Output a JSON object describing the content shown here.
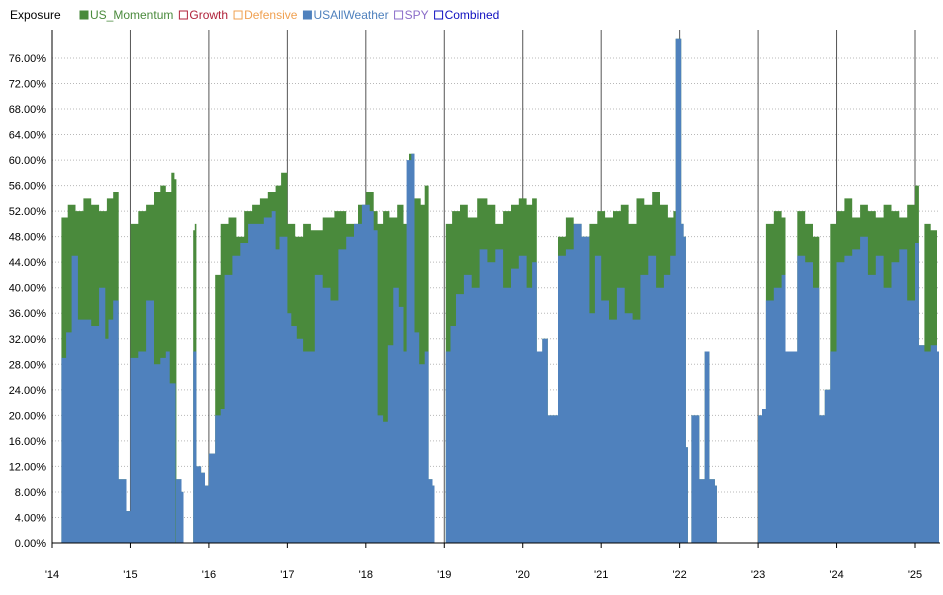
{
  "legend": {
    "title": "Exposure",
    "items": [
      {
        "name": "US_Momentum",
        "color": "#4a8a3c",
        "filled": true
      },
      {
        "name": "Growth",
        "color": "#b0223a",
        "filled": false
      },
      {
        "name": "Defensive",
        "color": "#f0a050",
        "filled": false
      },
      {
        "name": "USAllWeather",
        "color": "#4f81bd",
        "filled": true
      },
      {
        "name": "SPY",
        "color": "#8a6cc8",
        "filled": false
      },
      {
        "name": "Combined",
        "color": "#1010c0",
        "filled": false
      }
    ]
  },
  "chart_data": {
    "type": "area",
    "title": "",
    "xlabel": "",
    "ylabel": "",
    "stacked": true,
    "ylim": [
      0,
      80
    ],
    "xlim": [
      2014.0,
      2025.3
    ],
    "grid": "horizontal dotted",
    "legend_position": "top-left",
    "y_ticks": [
      "0.00%",
      "4.00%",
      "8.00%",
      "12.00%",
      "16.00%",
      "20.00%",
      "24.00%",
      "28.00%",
      "32.00%",
      "36.00%",
      "40.00%",
      "44.00%",
      "48.00%",
      "52.00%",
      "56.00%",
      "60.00%",
      "64.00%",
      "68.00%",
      "72.00%",
      "76.00%"
    ],
    "x_ticks": [
      {
        "label": "'14",
        "x": 2014.0
      },
      {
        "label": "'15",
        "x": 2015.0
      },
      {
        "label": "'16",
        "x": 2016.0
      },
      {
        "label": "'17",
        "x": 2017.0
      },
      {
        "label": "'18",
        "x": 2018.0
      },
      {
        "label": "'19",
        "x": 2019.0
      },
      {
        "label": "'20",
        "x": 2020.0
      },
      {
        "label": "'21",
        "x": 2021.0
      },
      {
        "label": "'22",
        "x": 2022.0
      },
      {
        "label": "'23",
        "x": 2023.0
      },
      {
        "label": "'24",
        "x": 2024.0
      },
      {
        "label": "'25",
        "x": 2025.0
      }
    ],
    "series": [
      {
        "name": "USAllWeather",
        "color": "#4f81bd",
        "points": [
          [
            2014.12,
            29
          ],
          [
            2014.18,
            33
          ],
          [
            2014.25,
            45
          ],
          [
            2014.33,
            35
          ],
          [
            2014.42,
            35
          ],
          [
            2014.5,
            34
          ],
          [
            2014.6,
            40
          ],
          [
            2014.68,
            32
          ],
          [
            2014.72,
            35
          ],
          [
            2014.78,
            38
          ],
          [
            2014.85,
            10
          ],
          [
            2014.92,
            10
          ],
          [
            2014.95,
            5
          ],
          [
            2015.0,
            29
          ],
          [
            2015.1,
            30
          ],
          [
            2015.2,
            38
          ],
          [
            2015.3,
            28
          ],
          [
            2015.38,
            29
          ],
          [
            2015.45,
            30
          ],
          [
            2015.5,
            25
          ],
          [
            2015.55,
            25
          ],
          [
            2015.58,
            null
          ],
          [
            2015.58,
            10
          ],
          [
            2015.65,
            8
          ],
          [
            2015.68,
            null
          ],
          [
            2015.8,
            30
          ],
          [
            2015.82,
            30
          ],
          [
            2015.84,
            12
          ],
          [
            2015.9,
            11
          ],
          [
            2015.95,
            9
          ],
          [
            2016.0,
            14
          ],
          [
            2016.08,
            20
          ],
          [
            2016.15,
            21
          ],
          [
            2016.2,
            42
          ],
          [
            2016.3,
            45
          ],
          [
            2016.4,
            47
          ],
          [
            2016.5,
            50
          ],
          [
            2016.6,
            50
          ],
          [
            2016.7,
            51
          ],
          [
            2016.8,
            52
          ],
          [
            2016.85,
            46
          ],
          [
            2016.9,
            48
          ],
          [
            2017.0,
            36
          ],
          [
            2017.05,
            34
          ],
          [
            2017.12,
            32
          ],
          [
            2017.2,
            30
          ],
          [
            2017.3,
            30
          ],
          [
            2017.35,
            42
          ],
          [
            2017.45,
            40
          ],
          [
            2017.55,
            38
          ],
          [
            2017.65,
            46
          ],
          [
            2017.75,
            48
          ],
          [
            2017.85,
            50
          ],
          [
            2017.95,
            53
          ],
          [
            2018.05,
            52
          ],
          [
            2018.1,
            49
          ],
          [
            2018.15,
            20
          ],
          [
            2018.22,
            19
          ],
          [
            2018.28,
            31
          ],
          [
            2018.35,
            40
          ],
          [
            2018.42,
            37
          ],
          [
            2018.48,
            30
          ],
          [
            2018.52,
            60
          ],
          [
            2018.58,
            61
          ],
          [
            2018.62,
            33
          ],
          [
            2018.68,
            28
          ],
          [
            2018.75,
            30
          ],
          [
            2018.8,
            10
          ],
          [
            2018.85,
            9
          ],
          [
            2018.87,
            null
          ],
          [
            2019.02,
            30
          ],
          [
            2019.08,
            34
          ],
          [
            2019.15,
            39
          ],
          [
            2019.25,
            42
          ],
          [
            2019.35,
            40
          ],
          [
            2019.45,
            46
          ],
          [
            2019.55,
            44
          ],
          [
            2019.65,
            46
          ],
          [
            2019.75,
            40
          ],
          [
            2019.85,
            43
          ],
          [
            2019.95,
            45
          ],
          [
            2020.05,
            40
          ],
          [
            2020.12,
            44
          ],
          [
            2020.18,
            30
          ],
          [
            2020.25,
            32
          ],
          [
            2020.32,
            20
          ],
          [
            2020.4,
            20
          ],
          [
            2020.45,
            45
          ],
          [
            2020.55,
            46
          ],
          [
            2020.65,
            50
          ],
          [
            2020.75,
            48
          ],
          [
            2020.85,
            36
          ],
          [
            2020.92,
            45
          ],
          [
            2021.0,
            38
          ],
          [
            2021.1,
            35
          ],
          [
            2021.2,
            40
          ],
          [
            2021.3,
            36
          ],
          [
            2021.4,
            35
          ],
          [
            2021.5,
            42
          ],
          [
            2021.6,
            45
          ],
          [
            2021.7,
            40
          ],
          [
            2021.8,
            42
          ],
          [
            2021.88,
            45
          ],
          [
            2021.95,
            79
          ],
          [
            2022.0,
            79
          ],
          [
            2022.02,
            50
          ],
          [
            2022.05,
            48
          ],
          [
            2022.08,
            15
          ],
          [
            2022.1,
            null
          ],
          [
            2022.15,
            20
          ],
          [
            2022.22,
            20
          ],
          [
            2022.25,
            10
          ],
          [
            2022.32,
            30
          ],
          [
            2022.38,
            10
          ],
          [
            2022.45,
            9
          ],
          [
            2022.48,
            null
          ],
          [
            2023.0,
            20
          ],
          [
            2023.05,
            21
          ],
          [
            2023.1,
            38
          ],
          [
            2023.2,
            40
          ],
          [
            2023.3,
            42
          ],
          [
            2023.35,
            30
          ],
          [
            2023.42,
            30
          ],
          [
            2023.5,
            45
          ],
          [
            2023.6,
            44
          ],
          [
            2023.7,
            40
          ],
          [
            2023.78,
            20
          ],
          [
            2023.85,
            24
          ],
          [
            2023.92,
            30
          ],
          [
            2024.0,
            44
          ],
          [
            2024.1,
            45
          ],
          [
            2024.2,
            46
          ],
          [
            2024.3,
            48
          ],
          [
            2024.4,
            42
          ],
          [
            2024.5,
            45
          ],
          [
            2024.6,
            40
          ],
          [
            2024.7,
            44
          ],
          [
            2024.8,
            46
          ],
          [
            2024.9,
            38
          ],
          [
            2025.0,
            47
          ],
          [
            2025.05,
            31
          ],
          [
            2025.12,
            30
          ],
          [
            2025.2,
            31
          ],
          [
            2025.28,
            30
          ]
        ]
      },
      {
        "name": "US_Momentum",
        "color": "#4a8a3c",
        "points": [
          [
            2014.12,
            51
          ],
          [
            2014.2,
            53
          ],
          [
            2014.3,
            52
          ],
          [
            2014.4,
            54
          ],
          [
            2014.5,
            53
          ],
          [
            2014.6,
            52
          ],
          [
            2014.7,
            54
          ],
          [
            2014.78,
            55
          ],
          [
            2014.85,
            10
          ],
          [
            2014.92,
            10
          ],
          [
            2014.95,
            5
          ],
          [
            2015.0,
            50
          ],
          [
            2015.1,
            52
          ],
          [
            2015.2,
            53
          ],
          [
            2015.3,
            55
          ],
          [
            2015.38,
            56
          ],
          [
            2015.45,
            55
          ],
          [
            2015.52,
            58
          ],
          [
            2015.56,
            57
          ],
          [
            2015.58,
            null
          ],
          [
            2015.58,
            10
          ],
          [
            2015.65,
            8
          ],
          [
            2015.68,
            null
          ],
          [
            2015.8,
            49
          ],
          [
            2015.82,
            50
          ],
          [
            2015.84,
            12
          ],
          [
            2015.9,
            11
          ],
          [
            2015.95,
            9
          ],
          [
            2016.0,
            14
          ],
          [
            2016.08,
            42
          ],
          [
            2016.15,
            50
          ],
          [
            2016.25,
            51
          ],
          [
            2016.35,
            48
          ],
          [
            2016.45,
            52
          ],
          [
            2016.55,
            53
          ],
          [
            2016.65,
            54
          ],
          [
            2016.75,
            55
          ],
          [
            2016.85,
            56
          ],
          [
            2016.92,
            58
          ],
          [
            2017.0,
            50
          ],
          [
            2017.1,
            48
          ],
          [
            2017.2,
            50
          ],
          [
            2017.3,
            49
          ],
          [
            2017.45,
            51
          ],
          [
            2017.6,
            52
          ],
          [
            2017.75,
            50
          ],
          [
            2017.9,
            53
          ],
          [
            2018.0,
            55
          ],
          [
            2018.1,
            52
          ],
          [
            2018.15,
            50
          ],
          [
            2018.22,
            52
          ],
          [
            2018.3,
            51
          ],
          [
            2018.4,
            53
          ],
          [
            2018.48,
            50
          ],
          [
            2018.55,
            61
          ],
          [
            2018.62,
            54
          ],
          [
            2018.7,
            53
          ],
          [
            2018.75,
            56
          ],
          [
            2018.8,
            10
          ],
          [
            2018.85,
            9
          ],
          [
            2018.87,
            null
          ],
          [
            2019.02,
            50
          ],
          [
            2019.1,
            52
          ],
          [
            2019.2,
            53
          ],
          [
            2019.3,
            51
          ],
          [
            2019.42,
            54
          ],
          [
            2019.55,
            53
          ],
          [
            2019.65,
            50
          ],
          [
            2019.75,
            52
          ],
          [
            2019.85,
            53
          ],
          [
            2019.95,
            54
          ],
          [
            2020.05,
            53
          ],
          [
            2020.12,
            54
          ],
          [
            2020.18,
            30
          ],
          [
            2020.25,
            32
          ],
          [
            2020.32,
            20
          ],
          [
            2020.4,
            20
          ],
          [
            2020.45,
            48
          ],
          [
            2020.55,
            51
          ],
          [
            2020.65,
            50
          ],
          [
            2020.75,
            48
          ],
          [
            2020.85,
            50
          ],
          [
            2020.95,
            52
          ],
          [
            2021.05,
            51
          ],
          [
            2021.15,
            52
          ],
          [
            2021.25,
            53
          ],
          [
            2021.35,
            50
          ],
          [
            2021.45,
            54
          ],
          [
            2021.55,
            53
          ],
          [
            2021.65,
            55
          ],
          [
            2021.75,
            53
          ],
          [
            2021.85,
            51
          ],
          [
            2021.92,
            52
          ],
          [
            2021.95,
            79
          ],
          [
            2022.0,
            79
          ],
          [
            2022.02,
            50
          ],
          [
            2022.05,
            48
          ],
          [
            2022.08,
            15
          ],
          [
            2022.1,
            null
          ],
          [
            2022.15,
            20
          ],
          [
            2022.22,
            20
          ],
          [
            2022.25,
            10
          ],
          [
            2022.32,
            30
          ],
          [
            2022.38,
            10
          ],
          [
            2022.45,
            9
          ],
          [
            2022.48,
            null
          ],
          [
            2023.0,
            20
          ],
          [
            2023.05,
            21
          ],
          [
            2023.1,
            50
          ],
          [
            2023.2,
            52
          ],
          [
            2023.3,
            51
          ],
          [
            2023.35,
            30
          ],
          [
            2023.42,
            30
          ],
          [
            2023.5,
            52
          ],
          [
            2023.6,
            50
          ],
          [
            2023.7,
            48
          ],
          [
            2023.78,
            20
          ],
          [
            2023.85,
            24
          ],
          [
            2023.92,
            50
          ],
          [
            2024.0,
            52
          ],
          [
            2024.1,
            54
          ],
          [
            2024.2,
            51
          ],
          [
            2024.3,
            53
          ],
          [
            2024.4,
            52
          ],
          [
            2024.5,
            51
          ],
          [
            2024.6,
            53
          ],
          [
            2024.7,
            52
          ],
          [
            2024.8,
            51
          ],
          [
            2024.9,
            53
          ],
          [
            2025.0,
            56
          ],
          [
            2025.05,
            31
          ],
          [
            2025.12,
            50
          ],
          [
            2025.2,
            49
          ],
          [
            2025.28,
            30
          ]
        ]
      }
    ]
  }
}
